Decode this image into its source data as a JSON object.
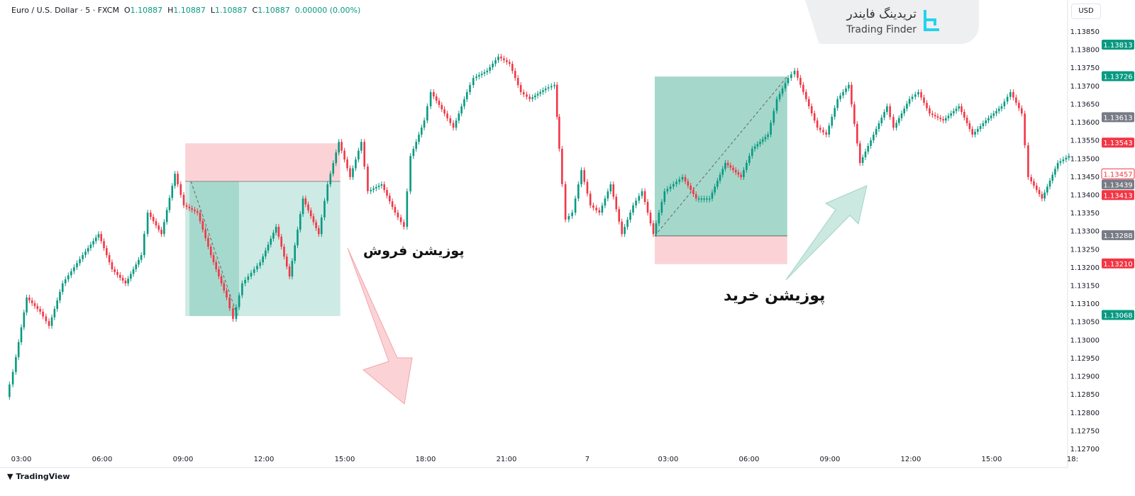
{
  "header": {
    "symbol": "Euro / U.S. Dollar · 5 · FXCM",
    "o_label": "O",
    "o": "1.10887",
    "h_label": "H",
    "h": "1.10887",
    "l_label": "L",
    "l": "1.10887",
    "c_label": "C",
    "c": "1.10887",
    "change": "0.00000 (0.00%)"
  },
  "currency": "USD",
  "logo": {
    "fa": "تریدینگ فایندر",
    "en": "Trading Finder"
  },
  "footer": "TradingView",
  "annotations": {
    "sell_label": "پوزیشن فروش",
    "buy_label": "پوزیشن خرید"
  },
  "colors": {
    "up": "#089981",
    "down": "#f23645",
    "profit_zone": "#b2dfd5",
    "loss_zone": "#fbd3d6",
    "axis_text": "#131722"
  },
  "chart_data": {
    "type": "candlestick",
    "ylim": [
      1.127,
      1.1385
    ],
    "y_ticks": [
      "1.13850",
      "1.13800",
      "1.13750",
      "1.13700",
      "1.13650",
      "1.13600",
      "1.13550",
      "1.13500",
      "1.13450",
      "1.13400",
      "1.13350",
      "1.13300",
      "1.13250",
      "1.13200",
      "1.13150",
      "1.13100",
      "1.13050",
      "1.13000",
      "1.12950",
      "1.12900",
      "1.12850",
      "1.12800",
      "1.12750",
      "1.12700"
    ],
    "x_ticks": [
      {
        "label": "03:00",
        "t": "6 03:00"
      },
      {
        "label": "06:00",
        "t": "6 06:00"
      },
      {
        "label": "09:00",
        "t": "6 09:00"
      },
      {
        "label": "12:00",
        "t": "6 12:00"
      },
      {
        "label": "15:00",
        "t": "6 15:00"
      },
      {
        "label": "18:00",
        "t": "6 18:00"
      },
      {
        "label": "21:00",
        "t": "6 21:00"
      },
      {
        "label": "7",
        "t": "7 00:00"
      },
      {
        "label": "03:00",
        "t": "7 03:00"
      },
      {
        "label": "06:00",
        "t": "7 06:00"
      },
      {
        "label": "09:00",
        "t": "7 09:00"
      },
      {
        "label": "12:00",
        "t": "7 12:00"
      },
      {
        "label": "15:00",
        "t": "7 15:00"
      },
      {
        "label": "18:",
        "t": "7 18:00"
      }
    ],
    "close": [
      [
        "6 02:30",
        1.12842
      ],
      [
        "6 02:45",
        1.12911
      ],
      [
        "6 03:15",
        1.13116
      ],
      [
        "6 03:45",
        1.13077
      ],
      [
        "6 04:05",
        1.13038
      ],
      [
        "6 04:35",
        1.13155
      ],
      [
        "6 05:20",
        1.13233
      ],
      [
        "6 05:55",
        1.13291
      ],
      [
        "6 06:25",
        1.13194
      ],
      [
        "6 06:55",
        1.13155
      ],
      [
        "6 07:30",
        1.13233
      ],
      [
        "6 07:45",
        1.1335
      ],
      [
        "6 08:15",
        1.13291
      ],
      [
        "6 08:45",
        1.13457
      ],
      [
        "6 09:05",
        1.1337
      ],
      [
        "6 09:35",
        1.1335
      ],
      [
        "6 10:05",
        1.13233
      ],
      [
        "6 10:40",
        1.13116
      ],
      [
        "6 10:55",
        1.13057
      ],
      [
        "6 11:15",
        1.13155
      ],
      [
        "6 11:55",
        1.13213
      ],
      [
        "6 12:30",
        1.13311
      ],
      [
        "6 13:00",
        1.13174
      ],
      [
        "6 13:30",
        1.13389
      ],
      [
        "6 14:05",
        1.13291
      ],
      [
        "6 14:25",
        1.13428
      ],
      [
        "6 14:50",
        1.13545
      ],
      [
        "6 15:15",
        1.13448
      ],
      [
        "6 15:40",
        1.13545
      ],
      [
        "6 15:55",
        1.13409
      ],
      [
        "6 16:25",
        1.13428
      ],
      [
        "6 16:55",
        1.1335
      ],
      [
        "6 17:15",
        1.13311
      ],
      [
        "6 17:30",
        1.13506
      ],
      [
        "6 18:00",
        1.13604
      ],
      [
        "6 18:15",
        1.13682
      ],
      [
        "6 18:45",
        1.13623
      ],
      [
        "6 19:05",
        1.13584
      ],
      [
        "6 19:35",
        1.13682
      ],
      [
        "6 19:50",
        1.13721
      ],
      [
        "6 20:20",
        1.13741
      ],
      [
        "6 20:45",
        1.1378
      ],
      [
        "6 21:10",
        1.1376
      ],
      [
        "6 21:35",
        1.13682
      ],
      [
        "6 21:55",
        1.13663
      ],
      [
        "6 22:30",
        1.13692
      ],
      [
        "6 22:50",
        1.13702
      ],
      [
        "6 23:00",
        1.13526
      ],
      [
        "6 23:15",
        1.13331
      ],
      [
        "6 23:30",
        1.1335
      ],
      [
        "6 23:50",
        1.13467
      ],
      [
        "7 00:10",
        1.1337
      ],
      [
        "7 00:30",
        1.1335
      ],
      [
        "7 00:55",
        1.13428
      ],
      [
        "7 01:20",
        1.13291
      ],
      [
        "7 01:45",
        1.1337
      ],
      [
        "7 02:05",
        1.13409
      ],
      [
        "7 02:30",
        1.13291
      ],
      [
        "7 02:55",
        1.13409
      ],
      [
        "7 03:35",
        1.13448
      ],
      [
        "7 04:05",
        1.13389
      ],
      [
        "7 04:35",
        1.13389
      ],
      [
        "7 05:10",
        1.13487
      ],
      [
        "7 05:45",
        1.13448
      ],
      [
        "7 06:10",
        1.13526
      ],
      [
        "7 06:45",
        1.13565
      ],
      [
        "7 07:05",
        1.13663
      ],
      [
        "7 07:30",
        1.13721
      ],
      [
        "7 07:45",
        1.13741
      ],
      [
        "7 08:10",
        1.13663
      ],
      [
        "7 08:35",
        1.13584
      ],
      [
        "7 08:55",
        1.13565
      ],
      [
        "7 09:20",
        1.13663
      ],
      [
        "7 09:45",
        1.13702
      ],
      [
        "7 10:10",
        1.13487
      ],
      [
        "7 10:40",
        1.13565
      ],
      [
        "7 11:10",
        1.13643
      ],
      [
        "7 11:25",
        1.13584
      ],
      [
        "7 12:00",
        1.13663
      ],
      [
        "7 12:20",
        1.13682
      ],
      [
        "7 12:45",
        1.13623
      ],
      [
        "7 13:15",
        1.13604
      ],
      [
        "7 13:50",
        1.13643
      ],
      [
        "7 14:20",
        1.13565
      ],
      [
        "7 14:50",
        1.13604
      ],
      [
        "7 15:25",
        1.13643
      ],
      [
        "7 15:45",
        1.13682
      ],
      [
        "7 16:10",
        1.13623
      ],
      [
        "7 16:25",
        1.13448
      ],
      [
        "7 16:55",
        1.13389
      ],
      [
        "7 17:30",
        1.13487
      ],
      [
        "7 17:55",
        1.13506
      ]
    ],
    "positions": [
      {
        "type": "short",
        "start": "6 09:05",
        "end": "6 14:50",
        "entry": 1.13436,
        "stop": 1.13541,
        "target": 1.13065,
        "filled_until": "6 10:55"
      },
      {
        "type": "long",
        "start": "7 02:30",
        "end": "7 07:25",
        "entry": 1.13286,
        "stop": 1.13208,
        "target": 1.13725
      }
    ],
    "price_labels": [
      {
        "value": "1.13813",
        "color": "#089981"
      },
      {
        "value": "1.13726",
        "color": "#089981"
      },
      {
        "value": "1.13613",
        "color": "#787b86"
      },
      {
        "value": "1.13543",
        "color": "#f23645"
      },
      {
        "value": "1.13457",
        "color": "outline"
      },
      {
        "value": "1.13439",
        "color": "#787b86"
      },
      {
        "value": "1.13413",
        "color": "#f23645"
      },
      {
        "value": "1.13288",
        "color": "#787b86"
      },
      {
        "value": "1.13210",
        "color": "#f23645"
      },
      {
        "value": "1.13068",
        "color": "#089981"
      }
    ]
  }
}
